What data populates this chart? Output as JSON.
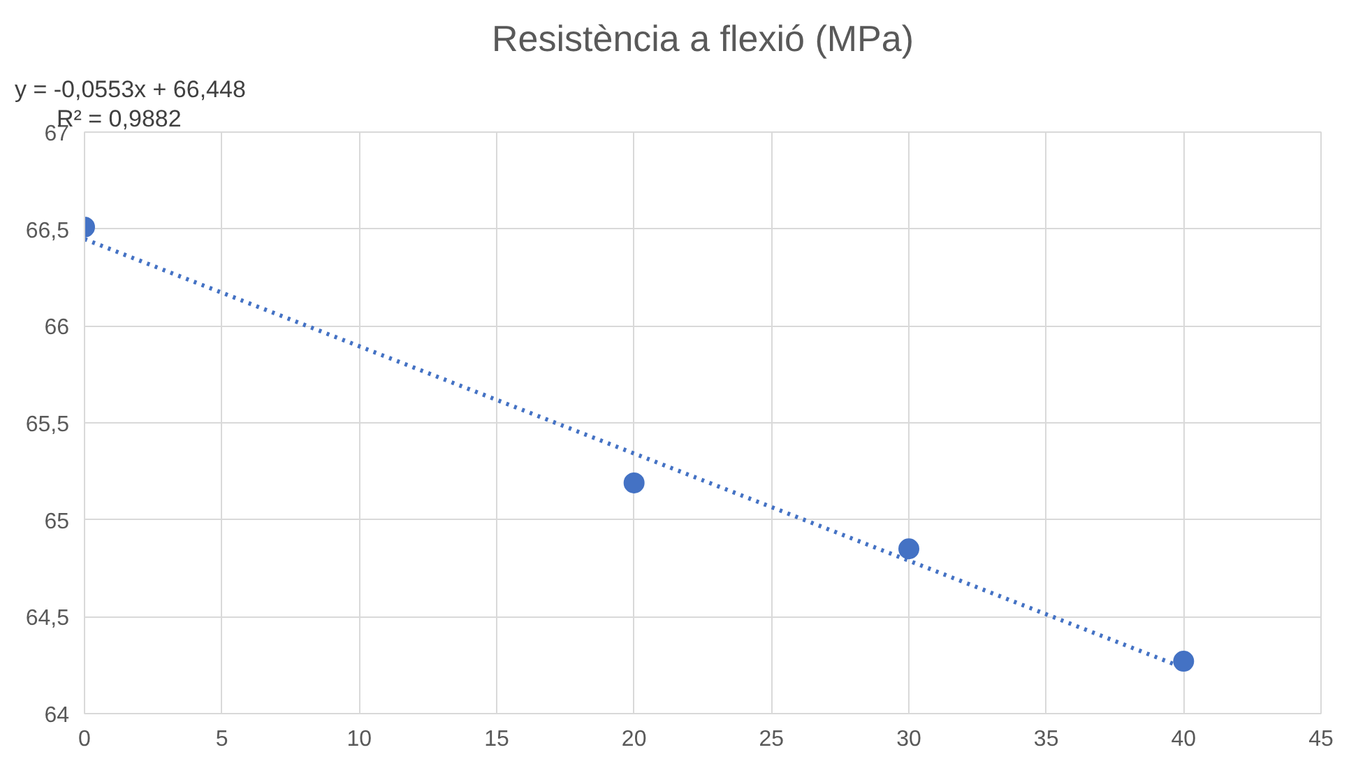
{
  "chart_data": {
    "type": "scatter",
    "title": "Resistència a flexió (MPa)",
    "annotations": [
      "y = -0,0553x + 66,448",
      "R² = 0,9882"
    ],
    "series": [
      {
        "color": "#4472c4",
        "x": [
          0,
          20,
          30,
          40
        ],
        "values": [
          66.51,
          65.19,
          64.85,
          64.27
        ],
        "marker": "circle"
      },
      {
        "type": "line",
        "color": "#4472c4",
        "x": [
          0,
          40
        ],
        "values": [
          66.448,
          64.236
        ],
        "line_style": "dotted"
      }
    ],
    "xlim": [
      0,
      45
    ],
    "xticks": [
      0,
      5,
      10,
      15,
      20,
      25,
      30,
      35,
      40,
      45
    ],
    "ylim": [
      64,
      67
    ],
    "yticks": [
      64,
      {
        "value": 64.5,
        "label": "64,5"
      },
      65,
      {
        "value": 65.5,
        "label": "65,5"
      },
      66,
      {
        "value": 66.5,
        "label": "66,5"
      },
      67
    ],
    "grid": true
  }
}
